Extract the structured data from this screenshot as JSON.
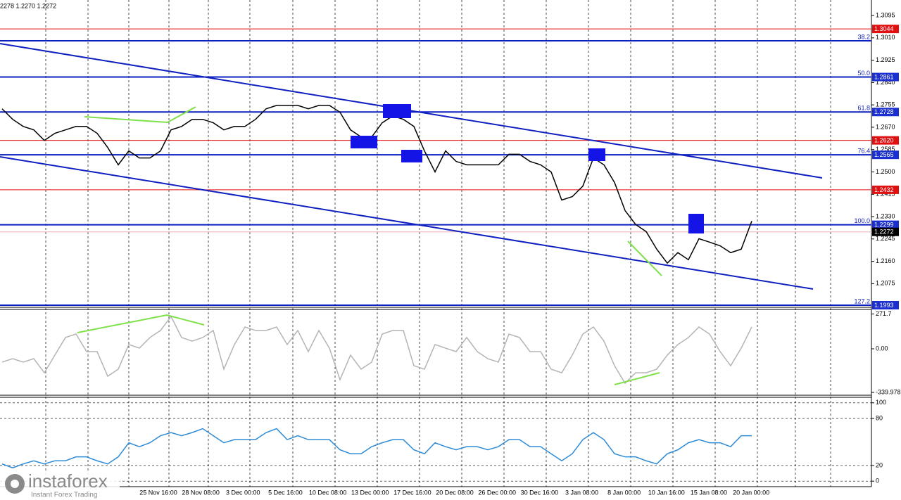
{
  "header": "2278 1.2270 1.2272",
  "time_axis": [
    "25 Nov 16:00",
    "28 Nov 08:00",
    "3 Dec 00:00",
    "5 Dec 16:00",
    "10 Dec 08:00",
    "13 Dec 00:00",
    "17 Dec 16:00",
    "20 Dec 08:00",
    "26 Dec 00:00",
    "30 Dec 16:00",
    "3 Jan 08:00",
    "8 Jan 00:00",
    "10 Jan 16:00",
    "15 Jan 08:00",
    "20 Jan 00:00"
  ],
  "watermark": {
    "brand": "instaforex",
    "tagline": "Instant Forex Trading"
  },
  "chart_data": [
    {
      "type": "line",
      "color": "#000000",
      "values": [
        1.274,
        1.27,
        1.2673,
        1.266,
        1.262,
        1.2647,
        1.266,
        1.2673,
        1.2673,
        1.2647,
        1.2593,
        1.2527,
        1.258,
        1.2553,
        1.2553,
        1.258,
        1.266,
        1.2673,
        1.27,
        1.27,
        1.2687,
        1.266,
        1.2673,
        1.2673,
        1.27,
        1.274,
        1.2753,
        1.2753,
        1.2753,
        1.274,
        1.2753,
        1.2753,
        1.2727,
        1.266,
        1.2633,
        1.2633,
        1.2687,
        1.2713,
        1.27,
        1.2673,
        1.258,
        1.25,
        1.258,
        1.254,
        1.2527,
        1.2527,
        1.2527,
        1.2527,
        1.2567,
        1.2567,
        1.254,
        1.2527,
        1.25,
        1.2393,
        1.2406,
        1.2446,
        1.2553,
        1.2527,
        1.246,
        1.2353,
        1.23,
        1.2273,
        1.2206,
        1.2153,
        1.2193,
        1.2166,
        1.2246,
        1.2233,
        1.2219,
        1.2193,
        1.2206,
        1.2313
      ],
      "ylim": [
        1.1985,
        1.3154
      ],
      "yticks": [
        1.3095,
        {
          "value": 1.301,
          "label": "1.3010"
        },
        1.2925,
        {
          "value": 1.284,
          "label": "1.2840"
        },
        1.2755,
        {
          "value": 1.267,
          "label": "1.2670"
        },
        1.2585,
        {
          "value": 1.25,
          "label": "1.2500"
        },
        1.2415,
        {
          "value": 1.233,
          "label": "1.2330"
        },
        1.2245,
        {
          "value": 1.216,
          "label": "1.2160"
        },
        1.2075
      ],
      "red_levels": [
        1.3044,
        {
          "value": 1.262,
          "label": "1.2620"
        },
        1.2432
      ],
      "fib_levels": [
        {
          "ratio": 38.2,
          "price": 1.2999,
          "price_tag": false
        },
        {
          "ratio": {
            "value": 50,
            "label": "50.0"
          },
          "price": 1.2861,
          "price_tag": true
        },
        {
          "ratio": 61.8,
          "price": 1.2728,
          "price_tag": true
        },
        {
          "ratio": 76.4,
          "price": 1.2565,
          "price_tag": true
        },
        {
          "ratio": {
            "value": 100,
            "label": "100.0"
          },
          "price": 1.2299,
          "price_tag": true
        },
        {
          "ratio": 127.2,
          "price": 1.1993,
          "price_tag": true
        }
      ],
      "last_price": 1.2272
    },
    {
      "type": "line",
      "color": "#b4b4b4",
      "values": [
        -104,
        -77,
        -104,
        -77,
        -187,
        -49,
        88,
        115,
        -22,
        -22,
        -214,
        -159,
        33,
        5,
        88,
        143,
        252,
        88,
        60,
        88,
        143,
        -159,
        33,
        170,
        143,
        143,
        170,
        33,
        143,
        -22,
        143,
        5,
        -241,
        -49,
        -159,
        -104,
        115,
        143,
        143,
        -132,
        -159,
        33,
        5,
        -22,
        88,
        -22,
        -77,
        -104,
        115,
        88,
        -22,
        -22,
        -159,
        -187,
        -49,
        115,
        170,
        60,
        -132,
        -269,
        -187,
        -187,
        -159,
        -49,
        33,
        88,
        170,
        115,
        -22,
        -132,
        5,
        170
      ],
      "ylim": [
        -362,
        307
      ],
      "yticks": [
        271.7,
        {
          "value": 0,
          "label": "0.00"
        },
        -339.978
      ],
      "grid": false
    },
    {
      "type": "line",
      "color": "#2e8bd6",
      "values": [
        22,
        17,
        22,
        26,
        22,
        26,
        26,
        31,
        31,
        26,
        22,
        31,
        49,
        44,
        49,
        58,
        62,
        58,
        62,
        67,
        58,
        49,
        53,
        53,
        53,
        62,
        67,
        53,
        58,
        53,
        53,
        53,
        40,
        35,
        35,
        44,
        49,
        53,
        53,
        40,
        35,
        49,
        44,
        40,
        44,
        44,
        40,
        44,
        53,
        53,
        44,
        44,
        35,
        26,
        35,
        53,
        62,
        53,
        35,
        31,
        31,
        26,
        22,
        35,
        40,
        49,
        53,
        49,
        49,
        44,
        58,
        58
      ],
      "ylim": [
        -7,
        107
      ],
      "yticks": [
        100,
        80,
        20,
        0
      ],
      "grid": true
    }
  ]
}
